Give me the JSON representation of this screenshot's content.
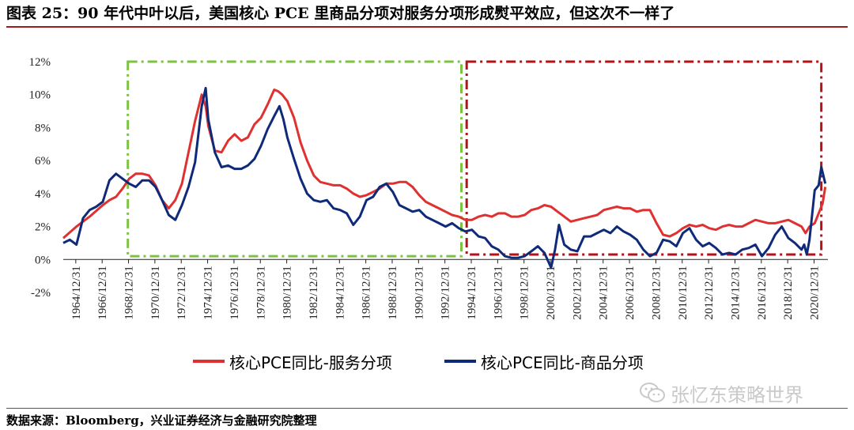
{
  "header": {
    "title": "图表 25：90 年代中叶以后，美国核心 PCE 里商品分项对服务分项形成熨平效应，但这次不一样了"
  },
  "chart_data": {
    "type": "line",
    "y_unit": "%",
    "ylim": [
      -2,
      12
    ],
    "y_ticks": [
      -2,
      0,
      2,
      4,
      6,
      8,
      10,
      12
    ],
    "y_tick_labels": [
      "-2%",
      "0%",
      "2%",
      "4%",
      "6%",
      "8%",
      "10%",
      "12%"
    ],
    "xlim": [
      1964.0,
      2022.0
    ],
    "x_tick_labels": [
      "1964/12/31",
      "1966/12/31",
      "1968/12/31",
      "1970/12/31",
      "1972/12/31",
      "1974/12/31",
      "1976/12/31",
      "1978/12/31",
      "1980/12/31",
      "1982/12/31",
      "1984/12/31",
      "1986/12/31",
      "1988/12/31",
      "1990/12/31",
      "1992/12/31",
      "1994/12/31",
      "1996/12/31",
      "1998/12/31",
      "2000/12/31",
      "2002/12/31",
      "2004/12/31",
      "2006/12/31",
      "2008/12/31",
      "2010/12/31",
      "2012/12/31",
      "2014/12/31",
      "2016/12/31",
      "2018/12/31",
      "2020/12/31"
    ],
    "series": [
      {
        "name": "核心PCE同比-服务分项",
        "color": "#e03131",
        "x": [
          1964.0,
          1965.0,
          1966.0,
          1967.0,
          1967.5,
          1968.0,
          1968.5,
          1969.0,
          1969.5,
          1970.0,
          1970.5,
          1971.0,
          1971.5,
          1972.0,
          1972.5,
          1973.0,
          1973.5,
          1974.0,
          1974.5,
          1974.8,
          1975.0,
          1975.5,
          1976.0,
          1976.5,
          1977.0,
          1977.5,
          1978.0,
          1978.5,
          1979.0,
          1979.5,
          1980.0,
          1980.3,
          1980.6,
          1981.0,
          1981.5,
          1982.0,
          1982.5,
          1983.0,
          1983.5,
          1984.0,
          1984.5,
          1985.0,
          1985.5,
          1986.0,
          1986.5,
          1987.0,
          1987.5,
          1988.0,
          1988.5,
          1989.0,
          1989.5,
          1990.0,
          1990.5,
          1991.0,
          1991.5,
          1992.0,
          1992.5,
          1993.0,
          1993.5,
          1994.0,
          1994.5,
          1995.0,
          1995.5,
          1996.0,
          1996.5,
          1997.0,
          1997.5,
          1998.0,
          1998.5,
          1999.0,
          1999.5,
          2000.0,
          2000.5,
          2001.0,
          2001.5,
          2002.0,
          2002.5,
          2003.0,
          2003.5,
          2004.0,
          2004.5,
          2005.0,
          2005.5,
          2006.0,
          2006.5,
          2007.0,
          2007.5,
          2008.0,
          2008.5,
          2009.0,
          2009.5,
          2010.0,
          2010.5,
          2011.0,
          2011.5,
          2012.0,
          2012.5,
          2013.0,
          2013.5,
          2014.0,
          2014.5,
          2015.0,
          2015.5,
          2016.0,
          2016.5,
          2017.0,
          2017.5,
          2018.0,
          2018.5,
          2019.0,
          2019.5,
          2020.0,
          2020.3,
          2020.6,
          2021.0,
          2021.3,
          2021.6,
          2021.8
        ],
        "values": [
          1.3,
          2.0,
          2.6,
          3.3,
          3.6,
          3.8,
          4.3,
          4.9,
          5.2,
          5.2,
          5.1,
          4.5,
          3.6,
          3.1,
          3.6,
          4.6,
          6.5,
          8.4,
          10.0,
          9.3,
          8.1,
          6.6,
          6.5,
          7.2,
          7.6,
          7.2,
          7.4,
          8.2,
          8.6,
          9.4,
          10.3,
          10.2,
          10.0,
          9.6,
          8.6,
          7.1,
          6.0,
          5.1,
          4.7,
          4.6,
          4.5,
          4.5,
          4.3,
          4.0,
          3.8,
          3.9,
          4.1,
          4.3,
          4.6,
          4.6,
          4.7,
          4.7,
          4.4,
          3.9,
          3.5,
          3.3,
          3.1,
          2.9,
          2.7,
          2.6,
          2.4,
          2.4,
          2.6,
          2.7,
          2.6,
          2.8,
          2.8,
          2.6,
          2.6,
          2.7,
          3.0,
          3.1,
          3.3,
          3.2,
          2.9,
          2.6,
          2.3,
          2.4,
          2.5,
          2.6,
          2.7,
          3.0,
          3.1,
          3.2,
          3.1,
          3.1,
          2.9,
          3.0,
          3.0,
          2.2,
          1.5,
          1.4,
          1.6,
          1.9,
          2.1,
          2.0,
          2.1,
          1.9,
          1.8,
          2.0,
          2.1,
          2.0,
          2.0,
          2.2,
          2.4,
          2.3,
          2.2,
          2.2,
          2.3,
          2.4,
          2.2,
          2.0,
          1.6,
          2.0,
          2.2,
          2.8,
          3.4,
          4.4
        ]
      },
      {
        "name": "核心PCE同比-商品分项",
        "color": "#0e2a78",
        "x": [
          1964.0,
          1964.5,
          1965.0,
          1965.5,
          1966.0,
          1966.5,
          1967.0,
          1967.5,
          1968.0,
          1968.5,
          1969.0,
          1969.5,
          1970.0,
          1970.5,
          1971.0,
          1971.5,
          1972.0,
          1972.5,
          1973.0,
          1973.5,
          1974.0,
          1974.5,
          1974.8,
          1975.0,
          1975.5,
          1976.0,
          1976.5,
          1977.0,
          1977.5,
          1978.0,
          1978.5,
          1979.0,
          1979.5,
          1980.0,
          1980.4,
          1980.7,
          1981.0,
          1981.5,
          1982.0,
          1982.5,
          1983.0,
          1983.5,
          1984.0,
          1984.5,
          1985.0,
          1985.5,
          1986.0,
          1986.5,
          1987.0,
          1987.5,
          1988.0,
          1988.5,
          1989.0,
          1989.5,
          1990.0,
          1990.5,
          1991.0,
          1991.5,
          1992.0,
          1992.5,
          1993.0,
          1993.5,
          1994.0,
          1994.5,
          1995.0,
          1995.5,
          1996.0,
          1996.5,
          1997.0,
          1997.5,
          1998.0,
          1998.5,
          1999.0,
          1999.5,
          2000.0,
          2000.5,
          2001.0,
          2001.3,
          2001.6,
          2002.0,
          2002.5,
          2003.0,
          2003.5,
          2004.0,
          2004.5,
          2005.0,
          2005.5,
          2006.0,
          2006.5,
          2007.0,
          2007.5,
          2008.0,
          2008.5,
          2009.0,
          2009.5,
          2010.0,
          2010.5,
          2011.0,
          2011.5,
          2012.0,
          2012.5,
          2013.0,
          2013.5,
          2014.0,
          2014.5,
          2015.0,
          2015.5,
          2016.0,
          2016.5,
          2017.0,
          2017.5,
          2018.0,
          2018.5,
          2019.0,
          2019.5,
          2020.0,
          2020.2,
          2020.4,
          2020.6,
          2021.0,
          2021.3,
          2021.5,
          2021.8
        ],
        "values": [
          1.0,
          1.2,
          0.9,
          2.5,
          3.0,
          3.2,
          3.5,
          4.8,
          5.2,
          4.9,
          4.6,
          4.4,
          4.8,
          4.8,
          4.4,
          3.6,
          2.7,
          2.4,
          3.3,
          4.4,
          5.9,
          9.3,
          10.4,
          8.5,
          6.5,
          5.6,
          5.7,
          5.5,
          5.5,
          5.7,
          6.1,
          6.9,
          7.9,
          8.7,
          9.3,
          8.5,
          7.4,
          6.1,
          4.9,
          4.0,
          3.6,
          3.5,
          3.6,
          3.1,
          3.0,
          2.8,
          2.1,
          2.6,
          3.6,
          3.8,
          4.4,
          4.6,
          4.1,
          3.3,
          3.1,
          2.9,
          3.0,
          2.6,
          2.4,
          2.2,
          2.0,
          2.2,
          1.9,
          1.7,
          1.8,
          1.4,
          1.3,
          0.8,
          0.6,
          0.2,
          0.1,
          0.1,
          0.2,
          0.5,
          0.8,
          0.4,
          -0.5,
          0.6,
          2.1,
          0.9,
          0.6,
          0.5,
          1.4,
          1.4,
          1.6,
          1.8,
          1.6,
          2.0,
          1.7,
          1.5,
          1.2,
          0.6,
          0.2,
          0.4,
          1.2,
          1.1,
          0.8,
          1.6,
          1.9,
          1.2,
          0.8,
          1.0,
          0.7,
          0.3,
          0.4,
          0.3,
          0.6,
          0.7,
          0.9,
          0.2,
          0.7,
          1.5,
          2.0,
          1.3,
          1.0,
          0.6,
          0.9,
          0.3,
          1.2,
          4.2,
          4.5,
          5.6,
          4.6
        ]
      }
    ],
    "annotations": [
      {
        "style": "green-dash-dot-box",
        "x_range": [
          1968.9,
          1994.2
        ],
        "y_range": [
          0.2,
          12.0
        ]
      },
      {
        "style": "red-dash-dot-box",
        "x_range": [
          1994.6,
          2021.5
        ],
        "y_range": [
          0.3,
          12.0
        ]
      }
    ]
  },
  "legend": {
    "services_label": "核心PCE同比-服务分项",
    "goods_label": "核心PCE同比-商品分项",
    "services_color": "#e03131",
    "goods_color": "#0e2a78"
  },
  "watermark": {
    "text": "张忆东策略世界"
  },
  "footer": {
    "source": "数据来源：Bloomberg，兴业证券经济与金融研究院整理"
  }
}
